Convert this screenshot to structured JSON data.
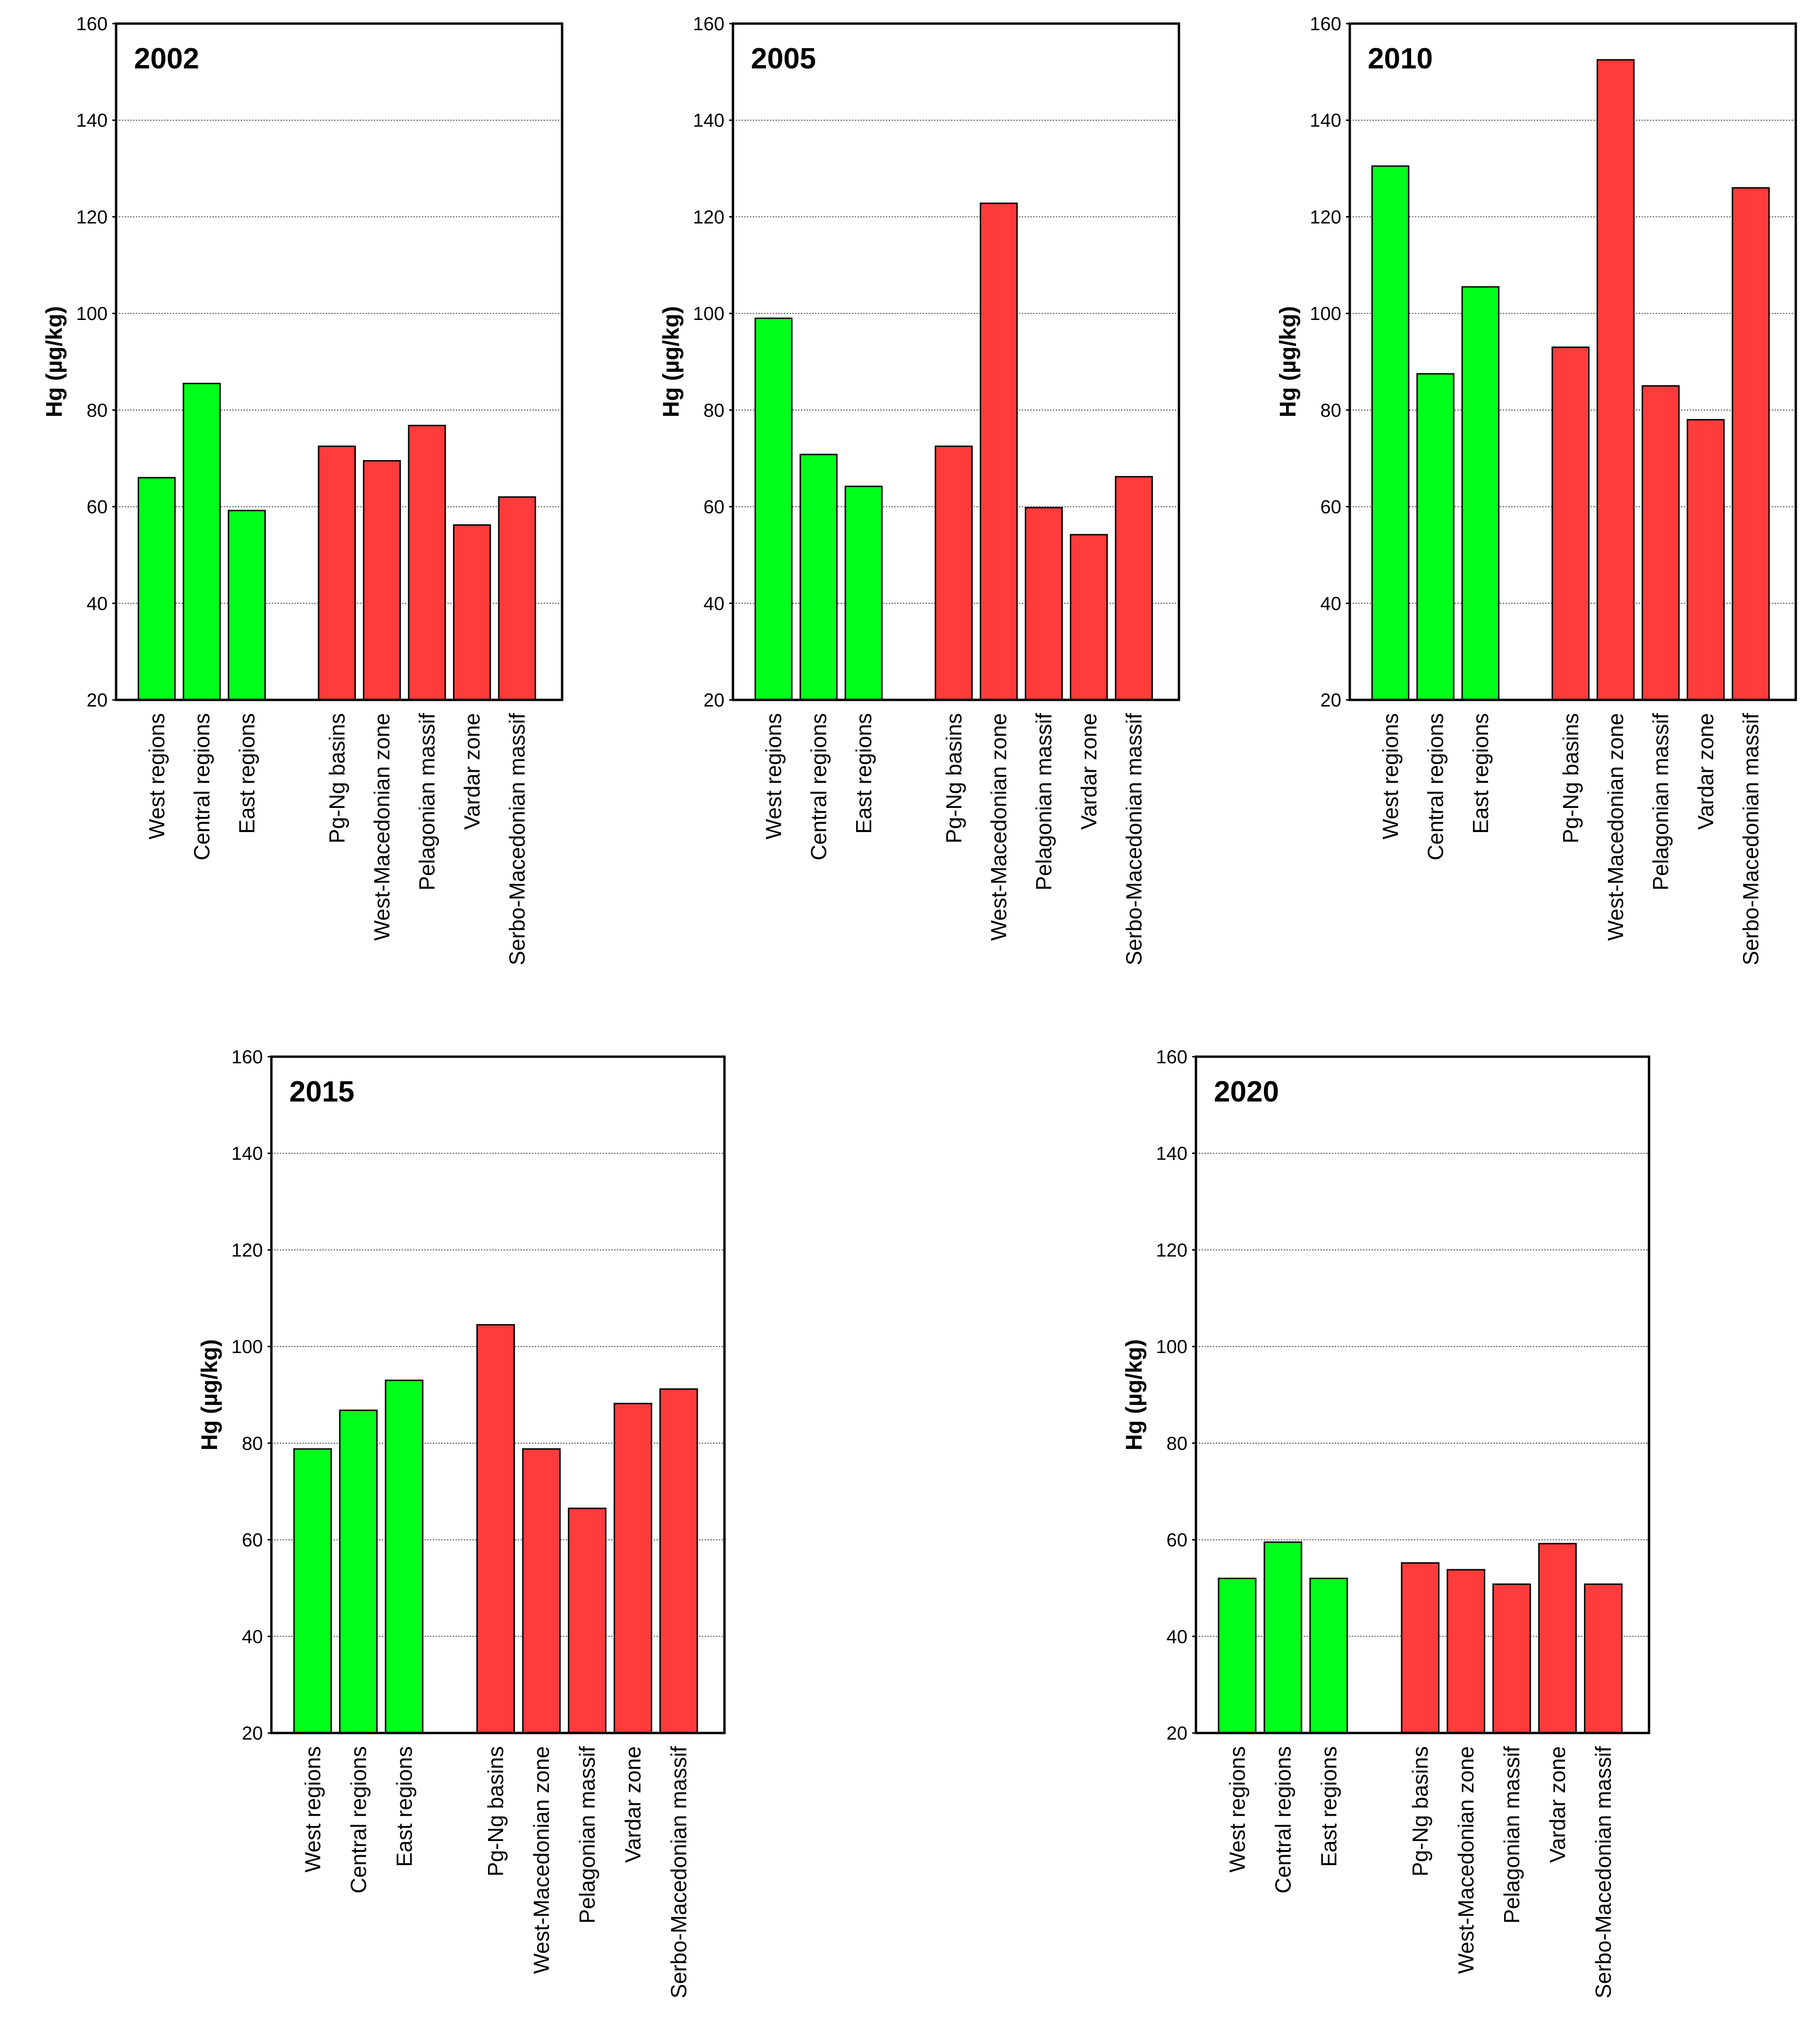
{
  "chart_data": [
    {
      "type": "bar",
      "title": "2002",
      "ylabel": "Hg (µg/kg)",
      "ylim": [
        20,
        160
      ],
      "yticks": [
        20,
        40,
        60,
        80,
        100,
        120,
        140,
        160
      ],
      "grid": true,
      "categories": [
        "West regions",
        "Central regions",
        "East regions",
        "Pg-Ng basins",
        "West-Macedonian zone",
        "Pelagonian massif",
        "Vardar zone",
        "Serbo-Macedonian massif"
      ],
      "groups": [
        "region",
        "region",
        "region",
        "geology",
        "geology",
        "geology",
        "geology",
        "geology"
      ],
      "values": [
        66,
        85.5,
        59.2,
        72.5,
        69.5,
        76.8,
        56.2,
        62
      ]
    },
    {
      "type": "bar",
      "title": "2005",
      "ylabel": "Hg (µg/kg)",
      "ylim": [
        20,
        160
      ],
      "yticks": [
        20,
        40,
        60,
        80,
        100,
        120,
        140,
        160
      ],
      "grid": true,
      "categories": [
        "West regions",
        "Central regions",
        "East regions",
        "Pg-Ng basins",
        "West-Macedonian zone",
        "Pelagonian massif",
        "Vardar zone",
        "Serbo-Macedonian massif"
      ],
      "groups": [
        "region",
        "region",
        "region",
        "geology",
        "geology",
        "geology",
        "geology",
        "geology"
      ],
      "values": [
        99,
        70.8,
        64.2,
        72.5,
        122.8,
        59.8,
        54.2,
        66.2
      ]
    },
    {
      "type": "bar",
      "title": "2010",
      "ylabel": "Hg (µg/kg)",
      "ylim": [
        20,
        160
      ],
      "yticks": [
        20,
        40,
        60,
        80,
        100,
        120,
        140,
        160
      ],
      "grid": true,
      "categories": [
        "West regions",
        "Central regions",
        "East regions",
        "Pg-Ng basins",
        "West-Macedonian zone",
        "Pelagonian massif",
        "Vardar zone",
        "Serbo-Macedonian massif"
      ],
      "groups": [
        "region",
        "region",
        "region",
        "geology",
        "geology",
        "geology",
        "geology",
        "geology"
      ],
      "values": [
        130.5,
        87.5,
        105.5,
        93,
        152.5,
        85,
        78,
        126
      ]
    },
    {
      "type": "bar",
      "title": "2015",
      "ylabel": "Hg (µg/kg)",
      "ylim": [
        20,
        160
      ],
      "yticks": [
        20,
        40,
        60,
        80,
        100,
        120,
        140,
        160
      ],
      "grid": true,
      "categories": [
        "West regions",
        "Central regions",
        "East regions",
        "Pg-Ng basins",
        "West-Macedonian zone",
        "Pelagonian massif",
        "Vardar zone",
        "Serbo-Macedonian massif"
      ],
      "groups": [
        "region",
        "region",
        "region",
        "geology",
        "geology",
        "geology",
        "geology",
        "geology"
      ],
      "values": [
        78.8,
        86.8,
        93,
        104.5,
        78.8,
        66.5,
        88.2,
        91.2
      ]
    },
    {
      "type": "bar",
      "title": "2020",
      "ylabel": "Hg (µg/kg)",
      "ylim": [
        20,
        160
      ],
      "yticks": [
        20,
        40,
        60,
        80,
        100,
        120,
        140,
        160
      ],
      "grid": true,
      "categories": [
        "West regions",
        "Central regions",
        "East regions",
        "Pg-Ng basins",
        "West-Macedonian zone",
        "Pelagonian massif",
        "Vardar zone",
        "Serbo-Macedonian massif"
      ],
      "groups": [
        "region",
        "region",
        "region",
        "geology",
        "geology",
        "geology",
        "geology",
        "geology"
      ],
      "values": [
        52,
        59.5,
        52,
        55.2,
        53.8,
        50.8,
        59.2,
        50.8
      ]
    }
  ],
  "colors": {
    "region": "#00ff1a",
    "geology": "#ff3b3b",
    "grid": "#555555",
    "axis": "#000000"
  }
}
